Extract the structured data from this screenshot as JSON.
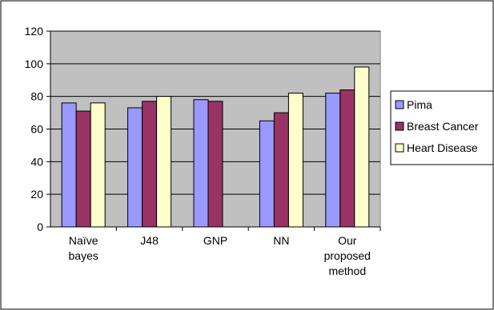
{
  "chart_data": {
    "type": "bar",
    "categories": [
      [
        "Naïve",
        "bayes"
      ],
      [
        "J48"
      ],
      [
        "GNP"
      ],
      [
        "NN"
      ],
      [
        "Our",
        "proposed",
        "method"
      ]
    ],
    "series": [
      {
        "name": "Pima",
        "values": [
          76,
          73,
          78,
          65,
          82
        ],
        "color": "#9999ff"
      },
      {
        "name": "Breast Cancer",
        "values": [
          71,
          77,
          77,
          70,
          84
        ],
        "color": "#993366"
      },
      {
        "name": "Heart Disease",
        "values": [
          76,
          80,
          null,
          82,
          98
        ],
        "color": "#ffffcc"
      }
    ],
    "yticks": [
      "0",
      "20",
      "40",
      "60",
      "80",
      "100",
      "120"
    ],
    "ylim": [
      0,
      120
    ],
    "grid": true,
    "legend": "right",
    "plot_background": "#c0c0c0",
    "title": "",
    "xlabel": "",
    "ylabel": ""
  }
}
